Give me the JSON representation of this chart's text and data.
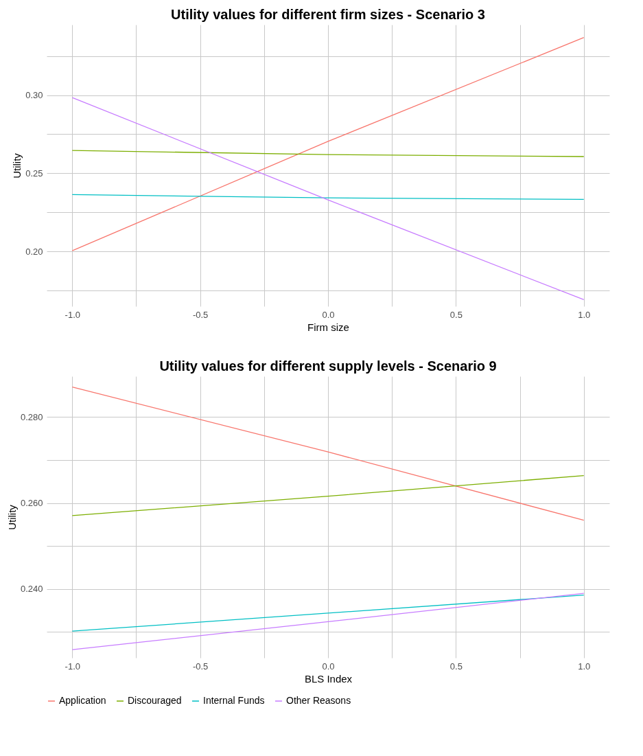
{
  "chart_data": [
    {
      "type": "line",
      "title": "Utility values for different firm sizes - Scenario 3",
      "xlabel": "Firm size",
      "ylabel": "Utility",
      "x": [
        -1,
        0,
        1
      ],
      "series": [
        {
          "color": "#f8766d",
          "values": [
            0.2005,
            0.2704,
            0.3368
          ]
        },
        {
          "color": "#7cae00",
          "values": [
            0.2646,
            0.262,
            0.2607
          ]
        },
        {
          "color": "#00bfc4",
          "values": [
            0.2364,
            0.2343,
            0.2333
          ]
        },
        {
          "color": "#c77cff",
          "values": [
            0.2984,
            0.233,
            0.1692
          ]
        }
      ],
      "xlim": [
        -1.1,
        1.1
      ],
      "ylim": [
        0.165,
        0.345
      ],
      "xticks": [
        {
          "value": -1,
          "label": "-1.0"
        },
        {
          "value": -0.75,
          "label": null
        },
        {
          "value": -0.5,
          "label": "-0.5"
        },
        {
          "value": -0.25,
          "label": null
        },
        {
          "value": 0,
          "label": "0.0"
        },
        {
          "value": 0.25,
          "label": null
        },
        {
          "value": 0.5,
          "label": "0.5"
        },
        {
          "value": 0.75,
          "label": null
        },
        {
          "value": 1,
          "label": "1.0"
        }
      ],
      "yticks": [
        {
          "value": 0.175,
          "label": null
        },
        {
          "value": 0.2,
          "label": "0.20"
        },
        {
          "value": 0.225,
          "label": null
        },
        {
          "value": 0.25,
          "label": "0.25"
        },
        {
          "value": 0.275,
          "label": null
        },
        {
          "value": 0.3,
          "label": "0.30"
        },
        {
          "value": 0.325,
          "label": null
        }
      ],
      "grid": true
    },
    {
      "type": "line",
      "title": "Utility values for different supply levels - Scenario 9",
      "xlabel": "BLS Index",
      "ylabel": "Utility",
      "x": [
        -1,
        0,
        1
      ],
      "series": [
        {
          "name": "Application",
          "color": "#f8766d",
          "values": [
            0.287,
            0.2719,
            0.256
          ]
        },
        {
          "name": "Discouraged",
          "color": "#7cae00",
          "values": [
            0.2571,
            0.2616,
            0.2664
          ]
        },
        {
          "name": "Internal Funds",
          "color": "#00bfc4",
          "values": [
            0.2302,
            0.2344,
            0.2386
          ]
        },
        {
          "name": "Other Reasons",
          "color": "#c77cff",
          "values": [
            0.2259,
            0.2324,
            0.239
          ]
        }
      ],
      "xlim": [
        -1.1,
        1.1
      ],
      "ylim": [
        0.224,
        0.2895
      ],
      "xticks": [
        {
          "value": -1,
          "label": "-1.0"
        },
        {
          "value": -0.75,
          "label": null
        },
        {
          "value": -0.5,
          "label": "-0.5"
        },
        {
          "value": -0.25,
          "label": null
        },
        {
          "value": 0,
          "label": "0.0"
        },
        {
          "value": 0.25,
          "label": null
        },
        {
          "value": 0.5,
          "label": "0.5"
        },
        {
          "value": 0.75,
          "label": null
        },
        {
          "value": 1,
          "label": "1.0"
        }
      ],
      "yticks": [
        {
          "value": 0.23,
          "label": null
        },
        {
          "value": 0.24,
          "label": "0.240"
        },
        {
          "value": 0.25,
          "label": null
        },
        {
          "value": 0.26,
          "label": "0.260"
        },
        {
          "value": 0.27,
          "label": null
        },
        {
          "value": 0.28,
          "label": "0.280"
        }
      ],
      "grid": true,
      "legend": "bottom"
    }
  ]
}
